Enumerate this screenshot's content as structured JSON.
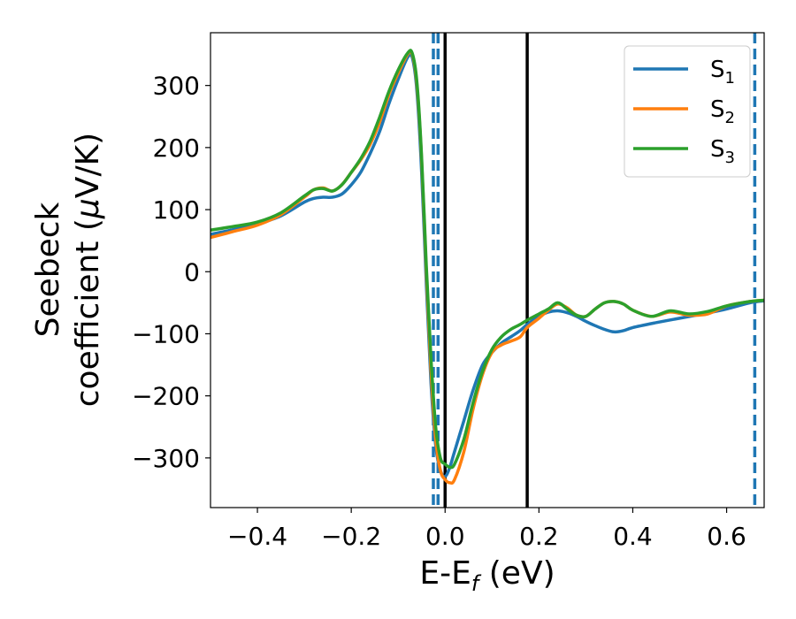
{
  "chart_data": {
    "type": "line",
    "xlabel": "E-E_f (eV)",
    "xlabel_main": "E-E",
    "xlabel_sub": "f",
    "xlabel_tail": " (eV)",
    "ylabel_line1": "Seebeck",
    "ylabel_line2_pre": "coefficient  (",
    "ylabel_mu": "μ",
    "ylabel_line2_post": "V/K)",
    "xlim": [
      -0.5,
      0.68
    ],
    "ylim": [
      -380,
      385
    ],
    "xticks": [
      -0.4,
      -0.2,
      0.0,
      0.2,
      0.4,
      0.6
    ],
    "xtick_labels": [
      "−0.4",
      "−0.2",
      "0.0",
      "0.2",
      "0.4",
      "0.6"
    ],
    "yticks": [
      300,
      200,
      100,
      0,
      -100,
      -200,
      -300
    ],
    "ytick_labels": [
      "300",
      "200",
      "100",
      "0",
      "−100",
      "−200",
      "−300"
    ],
    "grid": false,
    "legend_position": "top-right",
    "vlines": [
      {
        "x": 0.0,
        "style": "solid",
        "color": "#000000"
      },
      {
        "x": 0.175,
        "style": "solid",
        "color": "#000000"
      },
      {
        "x": -0.025,
        "style": "dashed",
        "color": "#1f77b4"
      },
      {
        "x": -0.015,
        "style": "dashed",
        "color": "#1f77b4"
      },
      {
        "x": 0.66,
        "style": "dashed",
        "color": "#1f77b4"
      }
    ],
    "series": [
      {
        "name": "S",
        "sub": "1",
        "color": "#1f77b4",
        "x": [
          -0.5,
          -0.45,
          -0.4,
          -0.35,
          -0.3,
          -0.28,
          -0.26,
          -0.24,
          -0.22,
          -0.2,
          -0.18,
          -0.16,
          -0.14,
          -0.12,
          -0.1,
          -0.08,
          -0.07,
          -0.06,
          -0.05,
          -0.04,
          -0.03,
          -0.02,
          -0.01,
          0.0,
          0.01,
          0.02,
          0.04,
          0.06,
          0.08,
          0.1,
          0.12,
          0.14,
          0.16,
          0.175,
          0.2,
          0.22,
          0.24,
          0.26,
          0.28,
          0.3,
          0.32,
          0.34,
          0.36,
          0.38,
          0.4,
          0.45,
          0.5,
          0.55,
          0.6,
          0.65,
          0.68
        ],
        "y": [
          60,
          68,
          77,
          90,
          112,
          118,
          120,
          120,
          125,
          140,
          160,
          190,
          225,
          270,
          310,
          345,
          345,
          290,
          160,
          -20,
          -180,
          -280,
          -320,
          -330,
          -315,
          -290,
          -240,
          -190,
          -150,
          -130,
          -115,
          -105,
          -95,
          -85,
          -72,
          -65,
          -63,
          -66,
          -72,
          -80,
          -87,
          -93,
          -97,
          -95,
          -90,
          -82,
          -75,
          -68,
          -60,
          -50,
          -47
        ]
      },
      {
        "name": "S",
        "sub": "2",
        "color": "#ff7f0e",
        "x": [
          -0.5,
          -0.45,
          -0.4,
          -0.35,
          -0.3,
          -0.28,
          -0.26,
          -0.24,
          -0.22,
          -0.2,
          -0.18,
          -0.16,
          -0.14,
          -0.12,
          -0.1,
          -0.08,
          -0.07,
          -0.06,
          -0.05,
          -0.04,
          -0.03,
          -0.02,
          -0.01,
          0.0,
          0.01,
          0.02,
          0.04,
          0.06,
          0.08,
          0.1,
          0.12,
          0.14,
          0.16,
          0.175,
          0.2,
          0.22,
          0.24,
          0.26,
          0.28,
          0.3,
          0.32,
          0.34,
          0.36,
          0.38,
          0.4,
          0.44,
          0.48,
          0.52,
          0.56,
          0.6,
          0.65,
          0.68
        ],
        "y": [
          55,
          65,
          75,
          92,
          120,
          132,
          135,
          130,
          140,
          160,
          180,
          205,
          240,
          285,
          320,
          350,
          350,
          300,
          180,
          0,
          -160,
          -270,
          -320,
          -335,
          -340,
          -335,
          -290,
          -220,
          -165,
          -130,
          -118,
          -112,
          -105,
          -90,
          -75,
          -62,
          -52,
          -58,
          -70,
          -72,
          -60,
          -50,
          -48,
          -52,
          -62,
          -72,
          -65,
          -70,
          -68,
          -55,
          -48,
          -46
        ]
      },
      {
        "name": "S",
        "sub": "3",
        "color": "#2ca02c",
        "x": [
          -0.5,
          -0.45,
          -0.4,
          -0.35,
          -0.3,
          -0.28,
          -0.26,
          -0.24,
          -0.22,
          -0.2,
          -0.18,
          -0.16,
          -0.14,
          -0.12,
          -0.1,
          -0.08,
          -0.07,
          -0.06,
          -0.05,
          -0.04,
          -0.03,
          -0.02,
          -0.01,
          0.0,
          0.01,
          0.02,
          0.04,
          0.06,
          0.08,
          0.1,
          0.12,
          0.14,
          0.16,
          0.175,
          0.2,
          0.22,
          0.24,
          0.26,
          0.28,
          0.3,
          0.32,
          0.34,
          0.36,
          0.38,
          0.4,
          0.44,
          0.48,
          0.52,
          0.56,
          0.6,
          0.65,
          0.68
        ],
        "y": [
          67,
          73,
          80,
          95,
          122,
          132,
          134,
          130,
          140,
          160,
          182,
          210,
          248,
          290,
          325,
          352,
          352,
          305,
          185,
          10,
          -140,
          -250,
          -300,
          -310,
          -315,
          -310,
          -270,
          -210,
          -160,
          -125,
          -105,
          -93,
          -85,
          -78,
          -68,
          -60,
          -50,
          -60,
          -70,
          -72,
          -60,
          -50,
          -48,
          -52,
          -62,
          -72,
          -63,
          -68,
          -64,
          -55,
          -48,
          -46
        ]
      }
    ]
  }
}
